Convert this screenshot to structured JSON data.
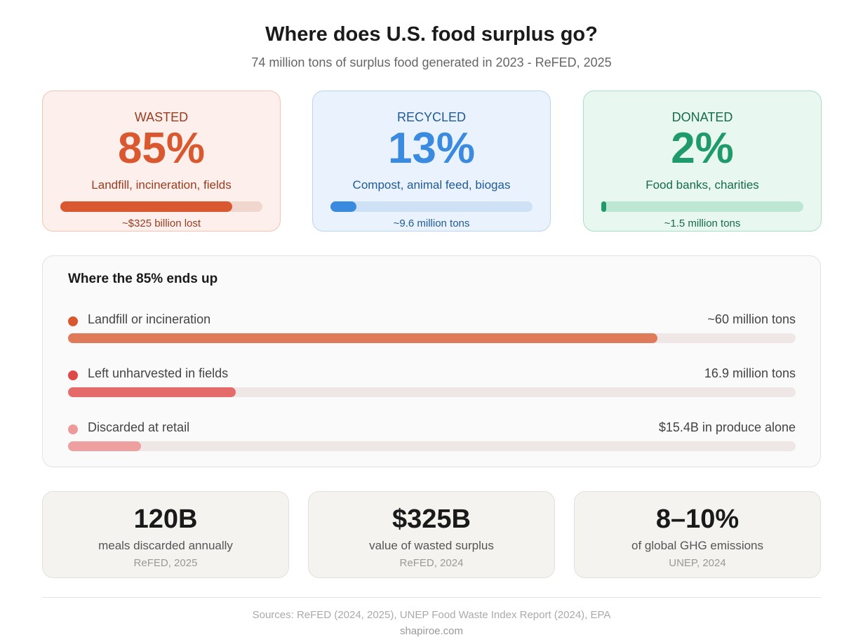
{
  "header": {
    "title": "Where does U.S. food surplus go?",
    "subtitle": "74 million tons of surplus food generated in 2023 - ReFED, 2025"
  },
  "cards": [
    {
      "label": "WASTED",
      "value": "85%",
      "desc": "Landfill, incineration, fields",
      "note": "~$325 billion lost",
      "fill_pct": 85,
      "color": "#d9582f",
      "bg": "#fdf0ec",
      "border": "#f2c4b4",
      "track": "#f1d6cd",
      "text": "#9a3b1f"
    },
    {
      "label": "RECYCLED",
      "value": "13%",
      "desc": "Compost, animal feed, biogas",
      "note": "~9.6 million tons",
      "fill_pct": 13,
      "color": "#3a8ae0",
      "bg": "#eaf3fd",
      "border": "#b9d5f3",
      "track": "#cfe1f5",
      "text": "#1f5a98"
    },
    {
      "label": "DONATED",
      "value": "2%",
      "desc": "Food banks, charities",
      "note": "~1.5 million tons",
      "fill_pct": 2,
      "color": "#1f9a6a",
      "bg": "#e8f7f0",
      "border": "#a9dfc6",
      "track": "#bde6d3",
      "text": "#156b4a"
    }
  ],
  "chart_data": {
    "type": "bar",
    "title": "Where the 85% ends up",
    "rows": [
      {
        "label": "Landfill or incineration",
        "value_text": "~60 million tons",
        "fill_pct": 81,
        "color": "#e07b5a",
        "dot": "#d9582f"
      },
      {
        "label": "Left unharvested in fields",
        "value_text": "16.9 million tons",
        "fill_pct": 23,
        "color": "#e56b6b",
        "dot": "#e04848"
      },
      {
        "label": "Discarded at retail",
        "value_text": "$15.4B in produce alone",
        "fill_pct": 10,
        "color": "#eea0a0",
        "dot": "#ee9a9a"
      }
    ]
  },
  "stats": [
    {
      "value": "120B",
      "desc": "meals discarded annually",
      "source": "ReFED, 2025"
    },
    {
      "value": "$325B",
      "desc": "value of wasted surplus",
      "source": "ReFED, 2024"
    },
    {
      "value": "8–10%",
      "desc": "of global GHG emissions",
      "source": "UNEP, 2024"
    }
  ],
  "footer": {
    "sources": "Sources: ReFED (2024, 2025), UNEP Food Waste Index Report (2024), EPA",
    "site": "shapiroe.com"
  }
}
